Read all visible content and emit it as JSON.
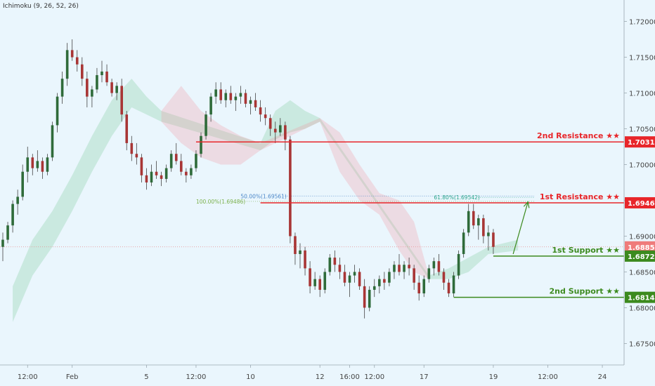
{
  "indicator_label": "Ichimoku (9, 26, 52, 26)",
  "chart_data": {
    "type": "candlestick",
    "ylim": [
      1.672,
      1.723
    ],
    "y_ticks": [
      "1.72000",
      "1.71500",
      "1.71000",
      "1.70500",
      "1.70000",
      "1.69500",
      "1.69000",
      "1.68500",
      "1.68000",
      "1.67500"
    ],
    "y_tick_values": [
      1.72,
      1.715,
      1.71,
      1.705,
      1.7,
      1.695,
      1.69,
      1.685,
      1.68,
      1.675
    ],
    "x_ticks": [
      {
        "label": "12:00",
        "bar": 5
      },
      {
        "label": "Feb",
        "bar": 14
      },
      {
        "label": "5",
        "bar": 29
      },
      {
        "label": "12:00",
        "bar": 39
      },
      {
        "label": "10",
        "bar": 50
      },
      {
        "label": "12",
        "bar": 64
      },
      {
        "label": "16:00",
        "bar": 70
      },
      {
        "label": "12:00",
        "bar": 75
      },
      {
        "label": "17",
        "bar": 85
      },
      {
        "label": "19",
        "bar": 99
      },
      {
        "label": "12:00",
        "bar": 110
      },
      {
        "label": "24",
        "bar": 121
      }
    ],
    "bars": [
      [
        1.6885,
        1.6905,
        1.6865,
        1.6895
      ],
      [
        1.6895,
        1.692,
        1.689,
        1.6915
      ],
      [
        1.6915,
        1.695,
        1.6905,
        1.6945
      ],
      [
        1.6945,
        1.6965,
        1.693,
        1.6955
      ],
      [
        1.6955,
        1.7,
        1.695,
        1.699
      ],
      [
        1.699,
        1.7025,
        1.6975,
        1.701
      ],
      [
        1.701,
        1.7015,
        1.6985,
        1.6995
      ],
      [
        1.6995,
        1.702,
        1.699,
        1.7005
      ],
      [
        1.7005,
        1.701,
        1.698,
        1.699
      ],
      [
        1.699,
        1.7015,
        1.6985,
        1.701
      ],
      [
        1.701,
        1.706,
        1.7005,
        1.7055
      ],
      [
        1.7055,
        1.71,
        1.7045,
        1.7095
      ],
      [
        1.7095,
        1.713,
        1.7085,
        1.712
      ],
      [
        1.712,
        1.717,
        1.711,
        1.716
      ],
      [
        1.716,
        1.7175,
        1.7145,
        1.715
      ],
      [
        1.715,
        1.716,
        1.713,
        1.714
      ],
      [
        1.714,
        1.715,
        1.711,
        1.712
      ],
      [
        1.712,
        1.713,
        1.708,
        1.7095
      ],
      [
        1.7095,
        1.711,
        1.708,
        1.7105
      ],
      [
        1.7105,
        1.7135,
        1.71,
        1.7125
      ],
      [
        1.7125,
        1.7145,
        1.7115,
        1.713
      ],
      [
        1.713,
        1.714,
        1.711,
        1.7115
      ],
      [
        1.7115,
        1.712,
        1.7095,
        1.71
      ],
      [
        1.71,
        1.7115,
        1.709,
        1.711
      ],
      [
        1.711,
        1.712,
        1.706,
        1.707
      ],
      [
        1.707,
        1.7075,
        1.702,
        1.703
      ],
      [
        1.703,
        1.704,
        1.7005,
        1.7015
      ],
      [
        1.7015,
        1.703,
        1.7,
        1.701
      ],
      [
        1.701,
        1.7015,
        1.6975,
        1.6985
      ],
      [
        1.6985,
        1.6995,
        1.6965,
        1.6975
      ],
      [
        1.6975,
        1.7,
        1.697,
        1.699
      ],
      [
        1.699,
        1.7005,
        1.698,
        1.6985
      ],
      [
        1.6985,
        1.699,
        1.697,
        1.698
      ],
      [
        1.698,
        1.7,
        1.6975,
        1.6995
      ],
      [
        1.6995,
        1.702,
        1.699,
        1.7015
      ],
      [
        1.7015,
        1.703,
        1.7,
        1.7005
      ],
      [
        1.7005,
        1.7015,
        1.6985,
        1.699
      ],
      [
        1.699,
        1.6995,
        1.6975,
        1.6985
      ],
      [
        1.6985,
        1.7,
        1.698,
        1.6995
      ],
      [
        1.6995,
        1.702,
        1.699,
        1.7015
      ],
      [
        1.7015,
        1.7045,
        1.701,
        1.704
      ],
      [
        1.704,
        1.7075,
        1.7035,
        1.707
      ],
      [
        1.707,
        1.71,
        1.706,
        1.7095
      ],
      [
        1.7095,
        1.7115,
        1.7085,
        1.7105
      ],
      [
        1.7105,
        1.7115,
        1.7085,
        1.709
      ],
      [
        1.709,
        1.7105,
        1.708,
        1.71
      ],
      [
        1.71,
        1.711,
        1.7085,
        1.709
      ],
      [
        1.709,
        1.71,
        1.7075,
        1.7095
      ],
      [
        1.7095,
        1.711,
        1.7085,
        1.71
      ],
      [
        1.71,
        1.7105,
        1.708,
        1.7085
      ],
      [
        1.7085,
        1.7095,
        1.707,
        1.709
      ],
      [
        1.709,
        1.71,
        1.7075,
        1.708
      ],
      [
        1.708,
        1.709,
        1.706,
        1.707
      ],
      [
        1.707,
        1.708,
        1.7055,
        1.7065
      ],
      [
        1.7065,
        1.707,
        1.704,
        1.705
      ],
      [
        1.705,
        1.706,
        1.703,
        1.7045
      ],
      [
        1.7045,
        1.7065,
        1.704,
        1.7055
      ],
      [
        1.7055,
        1.706,
        1.702,
        1.7035
      ],
      [
        1.7035,
        1.704,
        1.689,
        1.69
      ],
      [
        1.69,
        1.6905,
        1.686,
        1.6875
      ],
      [
        1.6875,
        1.689,
        1.6855,
        1.688
      ],
      [
        1.688,
        1.6885,
        1.6845,
        1.6855
      ],
      [
        1.6855,
        1.6865,
        1.682,
        1.683
      ],
      [
        1.683,
        1.685,
        1.6825,
        1.684
      ],
      [
        1.684,
        1.6845,
        1.6815,
        1.6825
      ],
      [
        1.6825,
        1.6855,
        1.682,
        1.685
      ],
      [
        1.685,
        1.6875,
        1.6845,
        1.687
      ],
      [
        1.687,
        1.688,
        1.685,
        1.686
      ],
      [
        1.686,
        1.687,
        1.684,
        1.685
      ],
      [
        1.685,
        1.686,
        1.683,
        1.6835
      ],
      [
        1.6835,
        1.685,
        1.6815,
        1.6845
      ],
      [
        1.6845,
        1.686,
        1.6835,
        1.685
      ],
      [
        1.685,
        1.6855,
        1.6825,
        1.683
      ],
      [
        1.683,
        1.684,
        1.6785,
        1.68
      ],
      [
        1.68,
        1.683,
        1.6795,
        1.6825
      ],
      [
        1.6825,
        1.684,
        1.6815,
        1.683
      ],
      [
        1.683,
        1.6845,
        1.682,
        1.684
      ],
      [
        1.684,
        1.685,
        1.6825,
        1.6835
      ],
      [
        1.6835,
        1.6855,
        1.683,
        1.685
      ],
      [
        1.685,
        1.6865,
        1.684,
        1.686
      ],
      [
        1.686,
        1.6875,
        1.6845,
        1.685
      ],
      [
        1.685,
        1.6865,
        1.684,
        1.686
      ],
      [
        1.686,
        1.687,
        1.6845,
        1.6855
      ],
      [
        1.6855,
        1.686,
        1.6825,
        1.6835
      ],
      [
        1.6835,
        1.6845,
        1.681,
        1.682
      ],
      [
        1.682,
        1.6845,
        1.6815,
        1.684
      ],
      [
        1.684,
        1.686,
        1.6835,
        1.6855
      ],
      [
        1.6855,
        1.687,
        1.6845,
        1.6865
      ],
      [
        1.6865,
        1.6875,
        1.6845,
        1.685
      ],
      [
        1.685,
        1.6855,
        1.6825,
        1.6835
      ],
      [
        1.6835,
        1.684,
        1.6815,
        1.682
      ],
      [
        1.682,
        1.685,
        1.6815,
        1.6845
      ],
      [
        1.6845,
        1.688,
        1.684,
        1.6875
      ],
      [
        1.6875,
        1.691,
        1.687,
        1.6905
      ],
      [
        1.6905,
        1.6945,
        1.69,
        1.6935
      ],
      [
        1.6935,
        1.6945,
        1.691,
        1.6915
      ],
      [
        1.6915,
        1.693,
        1.6895,
        1.6925
      ],
      [
        1.6925,
        1.693,
        1.689,
        1.69
      ],
      [
        1.69,
        1.6915,
        1.688,
        1.6905
      ],
      [
        1.6905,
        1.691,
        1.6875,
        1.6885
      ]
    ],
    "cloud_green": [
      [
        2,
        1.678,
        1.683
      ],
      [
        6,
        1.6845,
        1.6895
      ],
      [
        10,
        1.6885,
        1.6935
      ],
      [
        14,
        1.6935,
        1.6985
      ],
      [
        18,
        1.699,
        1.704
      ],
      [
        22,
        1.704,
        1.709
      ],
      [
        26,
        1.708,
        1.712
      ],
      [
        29,
        1.707,
        1.7095
      ],
      [
        32,
        1.706,
        1.7075
      ],
      [
        52,
        1.702,
        1.703
      ],
      [
        55,
        1.7035,
        1.7075
      ],
      [
        58,
        1.7045,
        1.709
      ],
      [
        61,
        1.705,
        1.7075
      ],
      [
        64,
        1.706,
        1.7065
      ],
      [
        86,
        1.684,
        1.6845
      ],
      [
        90,
        1.684,
        1.6855
      ],
      [
        94,
        1.685,
        1.687
      ],
      [
        98,
        1.6875,
        1.6885
      ],
      [
        104,
        1.688,
        1.6895
      ]
    ],
    "cloud_red": [
      [
        32,
        1.706,
        1.7075
      ],
      [
        36,
        1.703,
        1.711
      ],
      [
        40,
        1.701,
        1.7075
      ],
      [
        44,
        1.7,
        1.7055
      ],
      [
        48,
        1.7,
        1.704
      ],
      [
        52,
        1.702,
        1.703
      ],
      [
        64,
        1.706,
        1.7065
      ],
      [
        68,
        1.699,
        1.7045
      ],
      [
        72,
        1.695,
        1.7
      ],
      [
        76,
        1.693,
        1.696
      ],
      [
        80,
        1.688,
        1.695
      ],
      [
        83,
        1.685,
        1.692
      ],
      [
        86,
        1.684,
        1.6845
      ]
    ],
    "levels": [
      {
        "label": "2nd Resistance ★★",
        "value": 1.70317,
        "tag": "1.70317",
        "color": "#e8262a",
        "start_bar": 39
      },
      {
        "label": "1st Resistance ★★",
        "value": 1.69466,
        "tag": "1.69466",
        "color": "#e8262a",
        "start_bar": 52
      },
      {
        "label": "1st Support ★★",
        "value": 1.68721,
        "tag": "1.68721",
        "color": "#3c8a1e",
        "start_bar": 99
      },
      {
        "label": "2nd Support ★★",
        "value": 1.68145,
        "tag": "1.68145",
        "color": "#3c8a1e",
        "start_bar": 91
      }
    ],
    "current_price": {
      "value": 1.6885,
      "tag": "1.68850"
    },
    "fib_labels": [
      {
        "text": "100.00%(1.69486)",
        "value": 1.69486,
        "bar": 39,
        "color": "#7ab04a"
      },
      {
        "text": "50.00%(1.69561)",
        "value": 1.69561,
        "bar": 48,
        "color": "#4a86c8"
      },
      {
        "text": "61.80%(1.69542)",
        "value": 1.69542,
        "bar": 87,
        "color": "#2aa48a"
      }
    ],
    "arrow": {
      "from_bar": 103,
      "from_value": 1.6875,
      "to_bar": 106,
      "to_value": 1.6948,
      "color": "#3c8a1e"
    }
  }
}
